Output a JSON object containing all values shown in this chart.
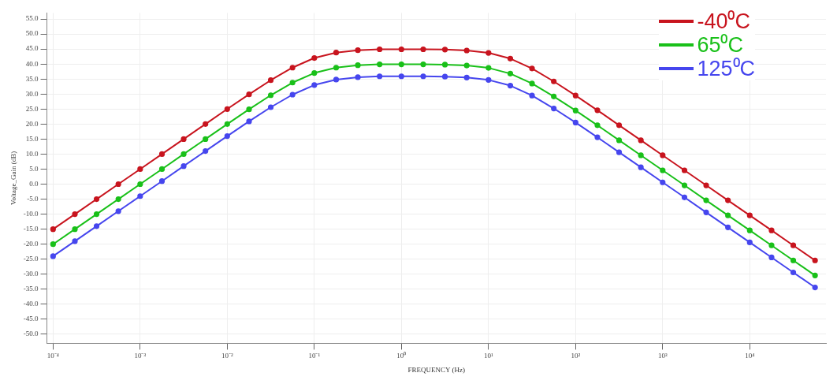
{
  "chart_data": {
    "type": "line",
    "xlabel": "FREQUENCY (Hz)",
    "ylabel": "Voltage_Gain (dB)",
    "x": [
      0.0001,
      0.000178,
      0.000316,
      0.000562,
      0.001,
      0.00178,
      0.00316,
      0.00562,
      0.01,
      0.0178,
      0.0316,
      0.0562,
      0.1,
      0.178,
      0.316,
      0.562,
      1,
      1.78,
      3.16,
      5.62,
      10,
      17.8,
      31.6,
      56.2,
      100,
      178,
      316,
      562,
      1000,
      1780,
      3160,
      5620,
      10000,
      17800,
      31600,
      56200
    ],
    "series": [
      {
        "name": "-40⁰C",
        "color": "#c8141e",
        "values": [
          -15,
          -10,
          -5,
          0,
          5,
          10,
          15,
          20,
          25,
          29.9,
          34.6,
          38.8,
          42,
          43.8,
          44.6,
          44.9,
          44.9,
          44.9,
          44.8,
          44.5,
          43.7,
          41.8,
          38.5,
          34.2,
          29.5,
          24.6,
          19.6,
          14.6,
          9.6,
          4.6,
          -0.4,
          -5.4,
          -10.4,
          -15.4,
          -20.4,
          -25.4
        ]
      },
      {
        "name": "65⁰C",
        "color": "#19c019",
        "values": [
          -20,
          -15,
          -10,
          -5,
          0,
          5,
          10,
          15,
          20,
          24.9,
          29.6,
          33.8,
          37,
          38.8,
          39.6,
          39.9,
          39.9,
          39.9,
          39.8,
          39.5,
          38.7,
          36.8,
          33.5,
          29.2,
          24.5,
          19.6,
          14.6,
          9.6,
          4.6,
          -0.4,
          -5.4,
          -10.4,
          -15.4,
          -20.4,
          -25.4,
          -30.4
        ]
      },
      {
        "name": "125⁰C",
        "color": "#4646ee",
        "values": [
          -24,
          -19,
          -14,
          -9,
          -4,
          1,
          6,
          11,
          16,
          20.9,
          25.6,
          29.8,
          33,
          34.8,
          35.6,
          35.9,
          35.9,
          35.9,
          35.8,
          35.5,
          34.7,
          32.8,
          29.5,
          25.2,
          20.5,
          15.6,
          10.6,
          5.6,
          0.6,
          -4.4,
          -9.4,
          -14.4,
          -19.4,
          -24.4,
          -29.4,
          -34.4
        ]
      }
    ],
    "log": "x",
    "xlim": [
      8.5e-05,
      75000
    ],
    "xticks": [
      {
        "value": 0.0001,
        "label": "10⁻⁴"
      },
      {
        "value": 0.001,
        "label": "10⁻³"
      },
      {
        "value": 0.01,
        "label": "10⁻²"
      },
      {
        "value": 0.1,
        "label": "10⁻¹"
      },
      {
        "value": 1,
        "label": "10⁰"
      },
      {
        "value": 10,
        "label": "10¹"
      },
      {
        "value": 100,
        "label": "10²"
      },
      {
        "value": 1000,
        "label": "10³"
      },
      {
        "value": 10000,
        "label": "10⁴"
      }
    ],
    "ylim": [
      -53,
      57
    ],
    "yticks": [
      {
        "value": -50,
        "label": "-50.0"
      },
      {
        "value": -45,
        "label": "-45.0"
      },
      {
        "value": -40,
        "label": "-40.0"
      },
      {
        "value": -35,
        "label": "-35.0"
      },
      {
        "value": -30,
        "label": "-30.0"
      },
      {
        "value": -25,
        "label": "-25.0"
      },
      {
        "value": -20,
        "label": "-20.0"
      },
      {
        "value": -15,
        "label": "-15.0"
      },
      {
        "value": -10,
        "label": "-10.0"
      },
      {
        "value": -5,
        "label": "-5.0"
      },
      {
        "value": 0,
        "label": "0.0"
      },
      {
        "value": 5,
        "label": "5.0"
      },
      {
        "value": 10,
        "label": "10.0"
      },
      {
        "value": 15,
        "label": "15.0"
      },
      {
        "value": 20,
        "label": "20.0"
      },
      {
        "value": 25,
        "label": "25.0"
      },
      {
        "value": 30,
        "label": "30.0"
      },
      {
        "value": 35,
        "label": "35.0"
      },
      {
        "value": 40,
        "label": "40.0"
      },
      {
        "value": 45,
        "label": "45.0"
      },
      {
        "value": 50,
        "label": "50.0"
      },
      {
        "value": 55,
        "label": "55.0"
      }
    ],
    "grid": true,
    "legend": "top right",
    "marker": "circle",
    "line_style": "solid"
  }
}
